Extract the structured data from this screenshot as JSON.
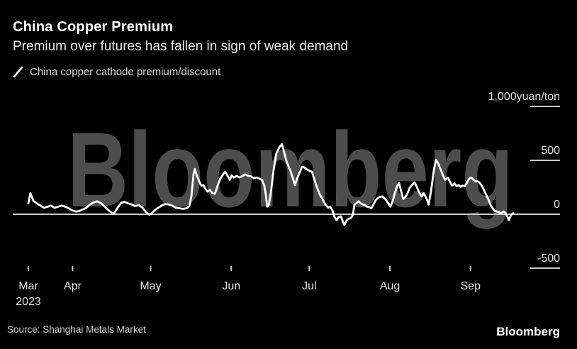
{
  "header": {
    "title": "China Copper Premium",
    "subtitle": "Premium over futures has fallen in sign of weak demand"
  },
  "legend": {
    "label": "China copper cathode premium/discount"
  },
  "footer": {
    "source": "Source: Shanghai Metals Market",
    "logo": "Bloomberg"
  },
  "watermark": "Bloomberg",
  "colors": {
    "background": "#000000",
    "line": "#ffffff",
    "axis": "#c9c9c9",
    "tick_text": "#e3e3e3",
    "watermark": "#4d4d4d",
    "title": "#ffffff",
    "subtitle": "#ececec",
    "legend_text": "#dddddd",
    "source_text": "#d4d4d4"
  },
  "chart_data": {
    "type": "line",
    "title": "China Copper Premium",
    "series_name": "China copper cathode premium/discount",
    "unit_label": "1,000yuan/ton",
    "xlabel": "",
    "ylabel": "yuan/ton",
    "ylim": [
      -750,
      1150
    ],
    "grid": "zero-line-only",
    "legend_position": "top-left",
    "x_start_date": "2023-03-15",
    "x_end_date": "2023-09-18",
    "x_total_days": 186.4,
    "x_ticks": [
      {
        "label": "Mar",
        "sublabel": "2023",
        "day": 0
      },
      {
        "label": "Apr",
        "day": 17
      },
      {
        "label": "May",
        "day": 47
      },
      {
        "label": "Jun",
        "day": 78
      },
      {
        "label": "Jul",
        "day": 108
      },
      {
        "label": "Aug",
        "day": 139
      },
      {
        "label": "Sep",
        "day": 170
      }
    ],
    "y_ticks": [
      {
        "label": "1,000yuan/ton",
        "value": 1000
      },
      {
        "label": "500",
        "value": 500
      },
      {
        "label": "0",
        "value": 0
      },
      {
        "label": "-500",
        "value": -500
      }
    ],
    "points": [
      [
        0,
        100
      ],
      [
        0.8,
        195
      ],
      [
        1.9,
        125
      ],
      [
        3.3,
        100
      ],
      [
        4.6,
        80
      ],
      [
        6,
        60
      ],
      [
        7.4,
        70
      ],
      [
        8.7,
        80
      ],
      [
        10.1,
        60
      ],
      [
        11.4,
        70
      ],
      [
        12.8,
        80
      ],
      [
        14.2,
        70
      ],
      [
        15.5,
        55
      ],
      [
        16.9,
        35
      ],
      [
        18.3,
        25
      ],
      [
        19.6,
        30
      ],
      [
        21,
        45
      ],
      [
        22.3,
        60
      ],
      [
        23.7,
        90
      ],
      [
        25.1,
        110
      ],
      [
        26.4,
        120
      ],
      [
        27.8,
        105
      ],
      [
        29.2,
        75
      ],
      [
        30.5,
        45
      ],
      [
        31.9,
        15
      ],
      [
        33,
        10
      ],
      [
        34.3,
        60
      ],
      [
        35.7,
        105
      ],
      [
        37,
        115
      ],
      [
        38.4,
        100
      ],
      [
        39.8,
        90
      ],
      [
        41.1,
        75
      ],
      [
        42.5,
        85
      ],
      [
        43.9,
        60
      ],
      [
        45.2,
        20
      ],
      [
        46.6,
        -5
      ],
      [
        47.7,
        15
      ],
      [
        48.8,
        40
      ],
      [
        49.9,
        60
      ],
      [
        51.2,
        80
      ],
      [
        52.6,
        95
      ],
      [
        54,
        90
      ],
      [
        55.3,
        80
      ],
      [
        56.7,
        60
      ],
      [
        58,
        55
      ],
      [
        59.4,
        50
      ],
      [
        60.8,
        55
      ],
      [
        61.9,
        75
      ],
      [
        62.7,
        170
      ],
      [
        63.5,
        370
      ],
      [
        64,
        420
      ],
      [
        64.9,
        350
      ],
      [
        65.7,
        305
      ],
      [
        66.5,
        265
      ],
      [
        67.3,
        270
      ],
      [
        68.1,
        235
      ],
      [
        68.9,
        210
      ],
      [
        69.8,
        225
      ],
      [
        70.8,
        195
      ],
      [
        71.7,
        190
      ],
      [
        72.8,
        265
      ],
      [
        73.8,
        330
      ],
      [
        74.9,
        370
      ],
      [
        75.7,
        395
      ],
      [
        76.6,
        355
      ],
      [
        77.4,
        320
      ],
      [
        78.2,
        360
      ],
      [
        79,
        340
      ],
      [
        80.1,
        355
      ],
      [
        81.2,
        340
      ],
      [
        82.3,
        355
      ],
      [
        83.4,
        370
      ],
      [
        84.5,
        355
      ],
      [
        85.6,
        350
      ],
      [
        86.6,
        335
      ],
      [
        87.7,
        340
      ],
      [
        88.8,
        330
      ],
      [
        89.9,
        315
      ],
      [
        90.7,
        265
      ],
      [
        91.3,
        180
      ],
      [
        91.8,
        70
      ],
      [
        92.4,
        85
      ],
      [
        93.2,
        195
      ],
      [
        94.3,
        410
      ],
      [
        95.4,
        570
      ],
      [
        96.5,
        620
      ],
      [
        97.5,
        650
      ],
      [
        98.4,
        570
      ],
      [
        99.2,
        495
      ],
      [
        100,
        445
      ],
      [
        100.8,
        400
      ],
      [
        101.6,
        340
      ],
      [
        102.5,
        270
      ],
      [
        103.3,
        330
      ],
      [
        104.4,
        390
      ],
      [
        105.2,
        440
      ],
      [
        106,
        435
      ],
      [
        107.1,
        415
      ],
      [
        108.2,
        400
      ],
      [
        109,
        395
      ],
      [
        109.8,
        335
      ],
      [
        110.9,
        255
      ],
      [
        112,
        185
      ],
      [
        113.1,
        140
      ],
      [
        114.2,
        90
      ],
      [
        115.3,
        60
      ],
      [
        116.1,
        70
      ],
      [
        116.9,
        35
      ],
      [
        117.7,
        -25
      ],
      [
        118.5,
        -55
      ],
      [
        119.3,
        -25
      ],
      [
        120.2,
        -20
      ],
      [
        120.7,
        -55
      ],
      [
        121.5,
        -100
      ],
      [
        122.3,
        -60
      ],
      [
        123.2,
        -40
      ],
      [
        124,
        -35
      ],
      [
        124.8,
        -5
      ],
      [
        125.3,
        85
      ],
      [
        126.2,
        105
      ],
      [
        127,
        120
      ],
      [
        127.8,
        100
      ],
      [
        128.6,
        90
      ],
      [
        129.4,
        85
      ],
      [
        130.2,
        70
      ],
      [
        131.1,
        65
      ],
      [
        131.9,
        55
      ],
      [
        132.7,
        90
      ],
      [
        133.5,
        130
      ],
      [
        134.3,
        150
      ],
      [
        135.1,
        160
      ],
      [
        136,
        165
      ],
      [
        136.8,
        150
      ],
      [
        137.6,
        130
      ],
      [
        138.4,
        100
      ],
      [
        139.2,
        70
      ],
      [
        140.1,
        125
      ],
      [
        140.9,
        195
      ],
      [
        141.7,
        255
      ],
      [
        142.5,
        290
      ],
      [
        143.3,
        215
      ],
      [
        144.1,
        140
      ],
      [
        144.9,
        160
      ],
      [
        145.8,
        195
      ],
      [
        146.6,
        245
      ],
      [
        147.7,
        275
      ],
      [
        148.5,
        295
      ],
      [
        149.3,
        255
      ],
      [
        150.4,
        195
      ],
      [
        151.2,
        165
      ],
      [
        152,
        195
      ],
      [
        153.1,
        145
      ],
      [
        153.9,
        90
      ],
      [
        154.8,
        210
      ],
      [
        155.9,
        410
      ],
      [
        156.7,
        505
      ],
      [
        157.5,
        475
      ],
      [
        158.6,
        410
      ],
      [
        159.4,
        360
      ],
      [
        160.2,
        320
      ],
      [
        161.3,
        340
      ],
      [
        162.1,
        300
      ],
      [
        162.9,
        265
      ],
      [
        163.8,
        285
      ],
      [
        164.6,
        260
      ],
      [
        165.4,
        270
      ],
      [
        166.2,
        255
      ],
      [
        167,
        265
      ],
      [
        167.8,
        260
      ],
      [
        168.7,
        295
      ],
      [
        169.5,
        330
      ],
      [
        170.3,
        340
      ],
      [
        171.1,
        320
      ],
      [
        171.9,
        305
      ],
      [
        172.8,
        305
      ],
      [
        173.6,
        290
      ],
      [
        174.4,
        260
      ],
      [
        175.2,
        225
      ],
      [
        176,
        180
      ],
      [
        176.8,
        140
      ],
      [
        177.7,
        85
      ],
      [
        178.5,
        55
      ],
      [
        179.3,
        30
      ],
      [
        180.1,
        25
      ],
      [
        180.9,
        20
      ],
      [
        181.7,
        10
      ],
      [
        182.6,
        25
      ],
      [
        183.4,
        15
      ],
      [
        184.2,
        -25
      ],
      [
        184.7,
        -55
      ],
      [
        185.6,
        -5
      ],
      [
        186.4,
        10
      ]
    ]
  }
}
